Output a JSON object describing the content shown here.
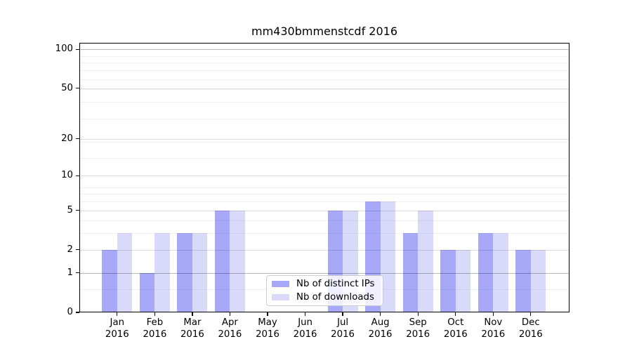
{
  "chart_data": {
    "type": "bar",
    "title": "mm430bmmenstcdf 2016",
    "year_label": "2016",
    "months": [
      "Jan",
      "Feb",
      "Mar",
      "Apr",
      "May",
      "Jun",
      "Jul",
      "Aug",
      "Sep",
      "Oct",
      "Nov",
      "Dec"
    ],
    "categories": [
      "Jan 2016",
      "Feb 2016",
      "Mar 2016",
      "Apr 2016",
      "May 2016",
      "Jun 2016",
      "Jul 2016",
      "Aug 2016",
      "Sep 2016",
      "Oct 2016",
      "Nov 2016",
      "Dec 2016"
    ],
    "series": [
      {
        "name": "Nb of distinct IPs",
        "color": "#a8a8f8",
        "values": [
          2,
          1,
          3,
          5,
          0,
          0,
          5,
          6,
          3,
          2,
          3,
          2
        ]
      },
      {
        "name": "Nb of downloads",
        "color": "#d9d9fa",
        "values": [
          3,
          3,
          3,
          5,
          0,
          0,
          5,
          6,
          5,
          2,
          3,
          2
        ]
      }
    ],
    "yticks": [
      0,
      1,
      2,
      5,
      10,
      20,
      50,
      100
    ],
    "minor_grid_values": [
      0.5,
      3,
      4,
      6,
      7,
      8,
      14,
      19,
      29,
      39,
      49,
      59,
      69,
      79,
      89
    ],
    "scale": "log1p",
    "ylim": [
      0,
      112
    ],
    "xlabel": "",
    "ylabel": "",
    "grid": true,
    "legend_position": "lower-center-inside",
    "background_color": "#ffffff",
    "spine_color": "#000000"
  }
}
